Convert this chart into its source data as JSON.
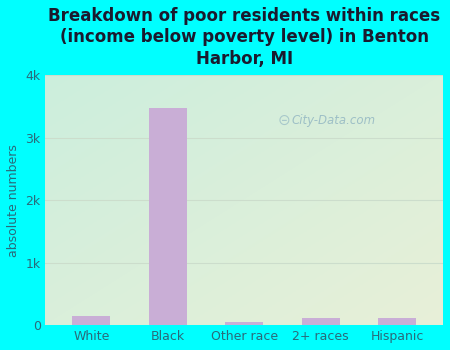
{
  "categories": [
    "White",
    "Black",
    "Other race",
    "2+ races",
    "Hispanic"
  ],
  "values": [
    150,
    3480,
    48,
    120,
    108
  ],
  "bar_color": "#c9aed6",
  "title": "Breakdown of poor residents within races\n(income below poverty level) in Benton\nHarbor, MI",
  "ylabel": "absolute numbers",
  "ylim": [
    0,
    4000
  ],
  "yticks": [
    0,
    1000,
    2000,
    3000,
    4000
  ],
  "ytick_labels": [
    "0",
    "1k",
    "2k",
    "3k",
    "4k"
  ],
  "bg_outer": "#00ffff",
  "bg_plot_tl": "#c8ede0",
  "bg_plot_br": "#e8f0d8",
  "grid_color": "#d0e8d0",
  "watermark": "City-Data.com",
  "title_fontsize": 12,
  "axis_label_fontsize": 9,
  "tick_fontsize": 9,
  "title_color": "#1a1a2e"
}
